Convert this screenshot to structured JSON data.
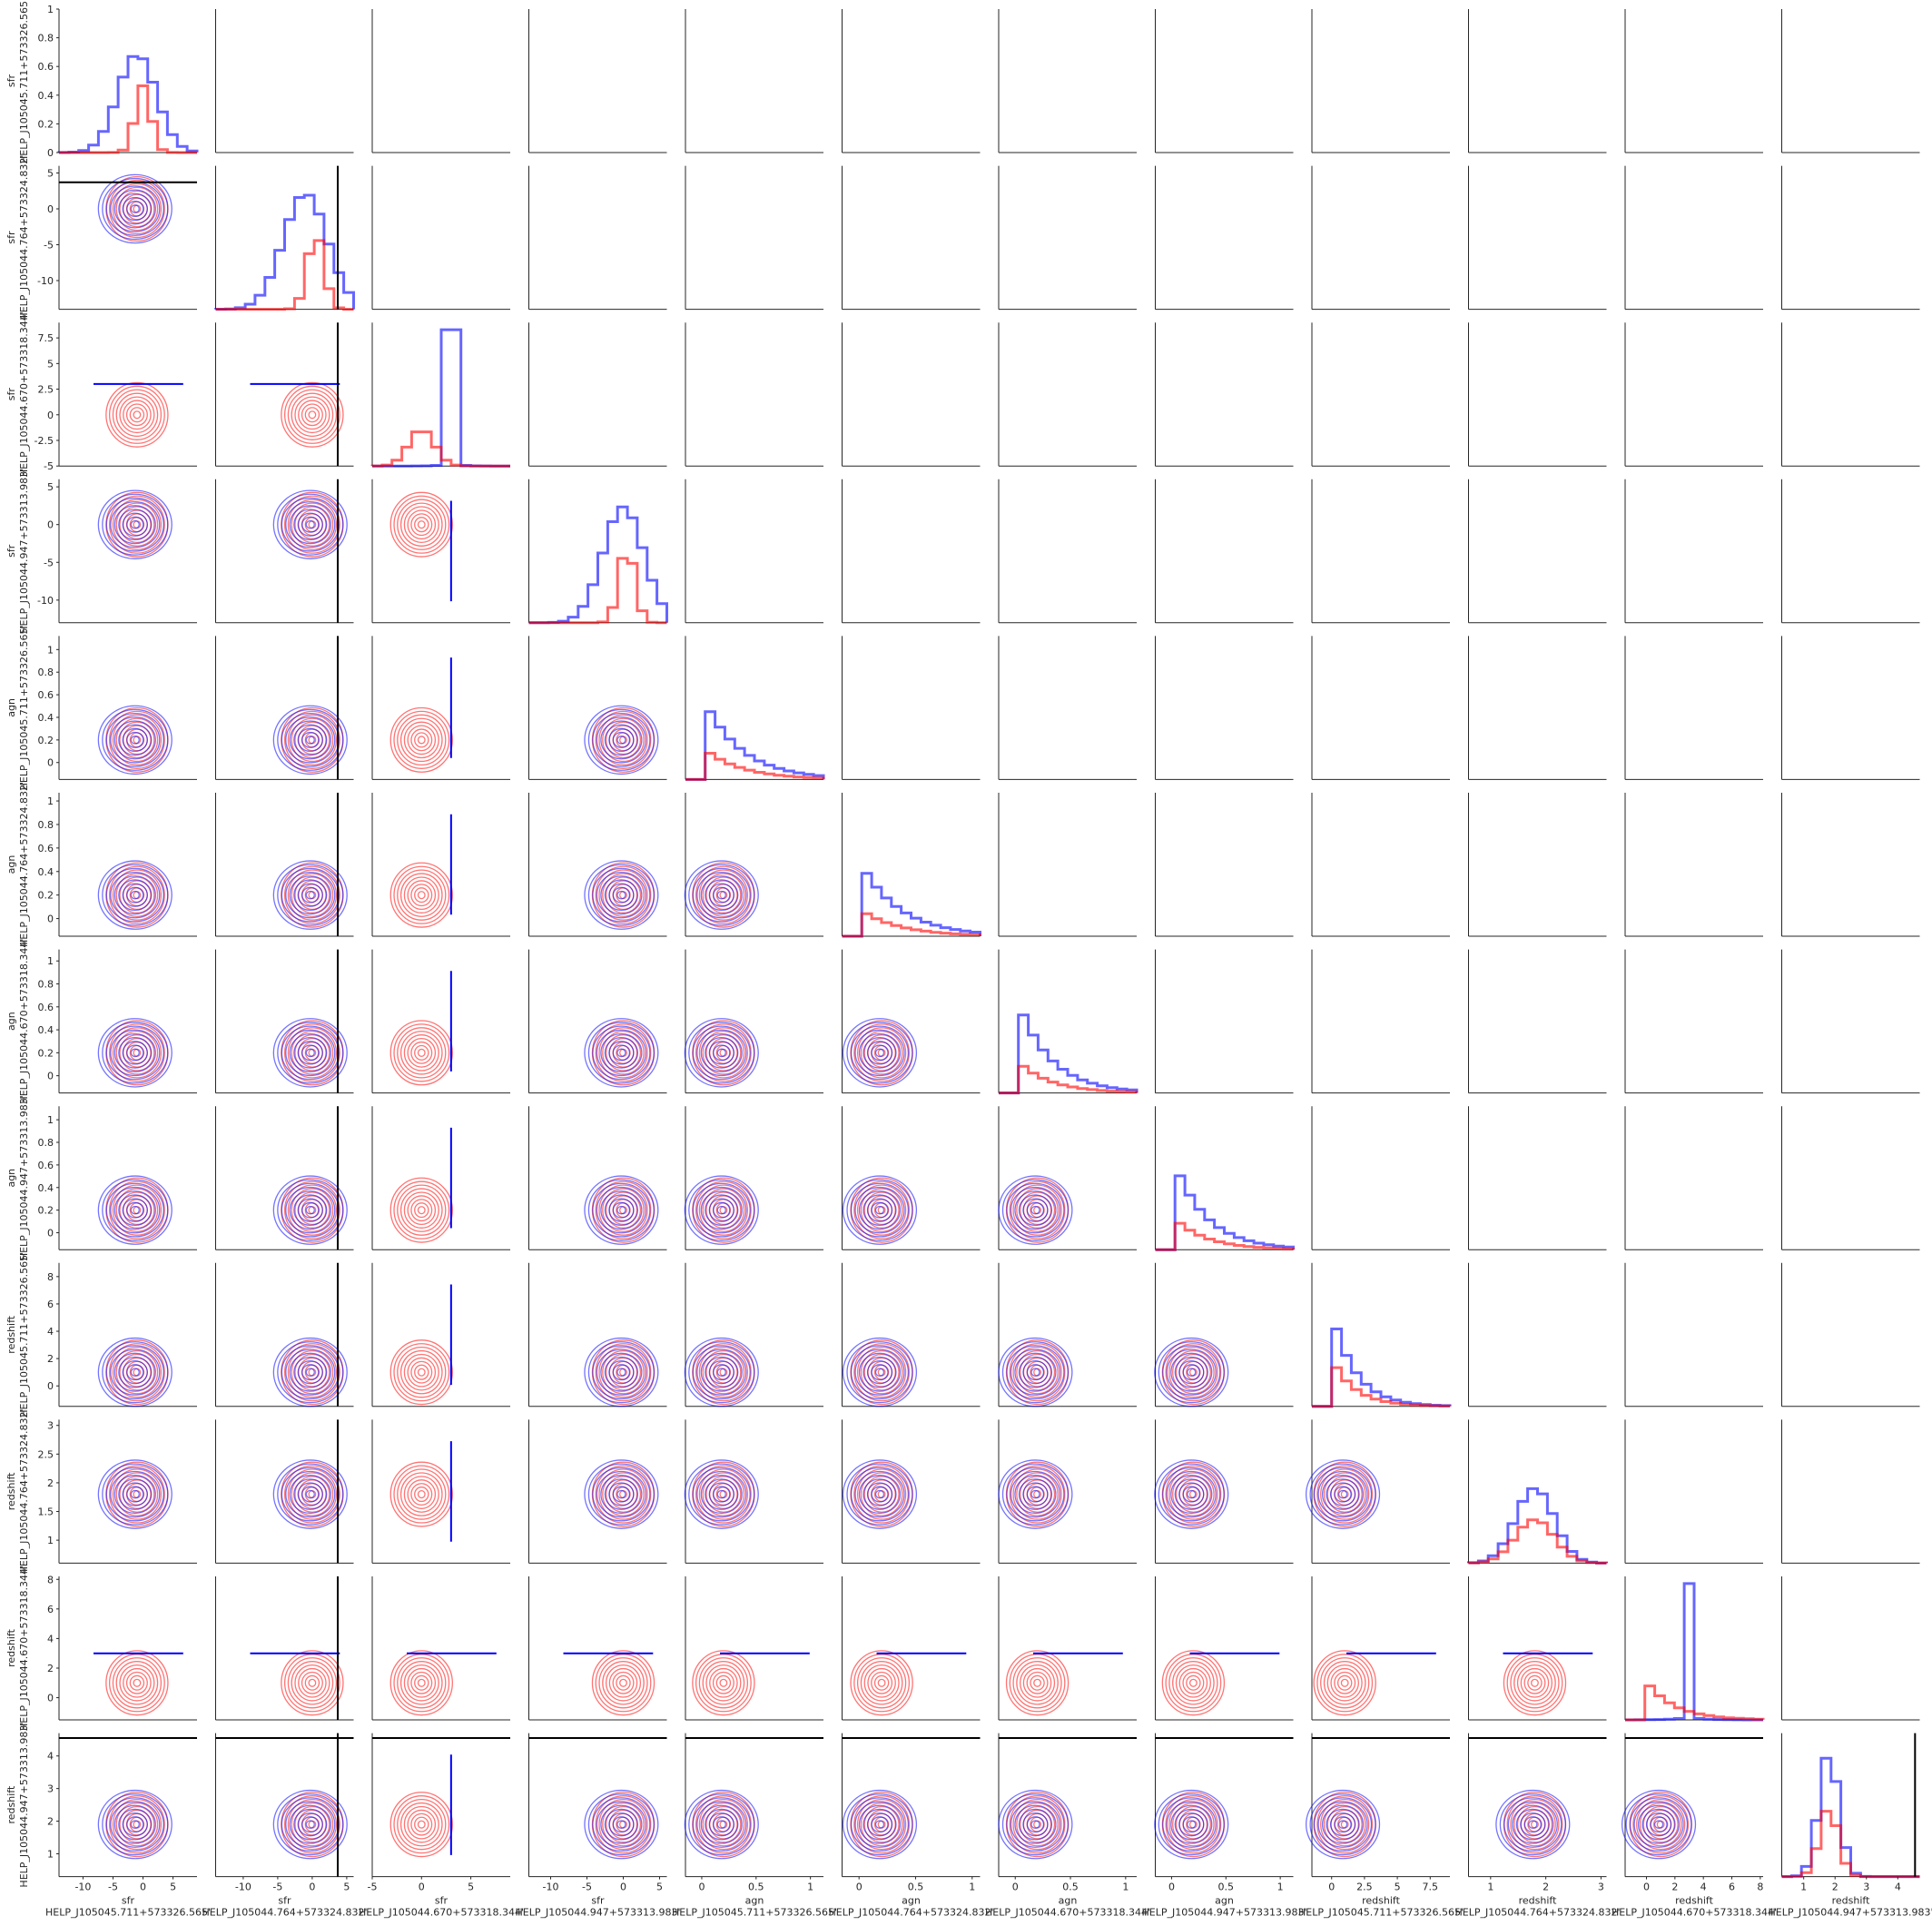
{
  "chart_data": {
    "type": "pairplot",
    "title": "",
    "grid": false,
    "corner": true,
    "objects": [
      "HELP_J105045.711+573326.565'",
      "HELP_J105044.764+573324.832'",
      "HELP_J105044.670+573318.344'",
      "HELP_J105044.947+573313.983'"
    ],
    "variables": [
      {
        "kind": "sfr",
        "object": "HELP_J105045.711+573326.565'",
        "lim": [
          -14,
          9
        ],
        "ticks": [
          -10,
          -5,
          0,
          5
        ],
        "yticks": [
          0,
          0.2,
          0.4,
          0.6,
          0.8,
          1.0
        ],
        "ylim": [
          0,
          1
        ]
      },
      {
        "kind": "sfr",
        "object": "HELP_J105044.764+573324.832'",
        "lim": [
          -14,
          6
        ],
        "ticks": [
          -10,
          -5,
          0,
          5
        ],
        "yticks": [
          -10,
          -5,
          0,
          5
        ]
      },
      {
        "kind": "sfr",
        "object": "HELP_J105044.670+573318.344'",
        "lim": [
          -5,
          9
        ],
        "ticks": [
          -5,
          0,
          5
        ],
        "yticks": [
          -5.0,
          -2.5,
          0.0,
          2.5,
          5.0,
          7.5
        ]
      },
      {
        "kind": "sfr",
        "object": "HELP_J105044.947+573313.983'",
        "lim": [
          -13,
          6
        ],
        "ticks": [
          -10,
          -5,
          0,
          5
        ],
        "yticks": [
          -10,
          -5,
          0,
          5
        ]
      },
      {
        "kind": "agn",
        "object": "HELP_J105045.711+573326.565'",
        "lim": [
          -0.15,
          1.12
        ],
        "ticks": [
          0.0,
          0.5,
          1.0
        ],
        "yticks": [
          0.0,
          0.2,
          0.4,
          0.6,
          0.8,
          1.0
        ]
      },
      {
        "kind": "agn",
        "object": "HELP_J105044.764+573324.832'",
        "lim": [
          -0.15,
          1.07
        ],
        "ticks": [
          0.0,
          0.5,
          1.0
        ],
        "yticks": [
          0.0,
          0.2,
          0.4,
          0.6,
          0.8,
          1.0
        ]
      },
      {
        "kind": "agn",
        "object": "HELP_J105044.670+573318.344'",
        "lim": [
          -0.15,
          1.1
        ],
        "ticks": [
          0.0,
          0.5,
          1.0
        ],
        "yticks": [
          0.0,
          0.2,
          0.4,
          0.6,
          0.8,
          1.0
        ]
      },
      {
        "kind": "agn",
        "object": "HELP_J105044.947+573313.983'",
        "lim": [
          -0.15,
          1.12
        ],
        "ticks": [
          0.0,
          0.5,
          1.0
        ],
        "yticks": [
          0.0,
          0.2,
          0.4,
          0.6,
          0.8,
          1.0
        ]
      },
      {
        "kind": "redshift",
        "object": "HELP_J105045.711+573326.565'",
        "lim": [
          -1.5,
          9
        ],
        "ticks": [
          0.0,
          2.5,
          5.0,
          7.5
        ],
        "yticks": [
          0,
          2,
          4,
          6,
          8
        ]
      },
      {
        "kind": "redshift",
        "object": "HELP_J105044.764+573324.832'",
        "lim": [
          0.6,
          3.1
        ],
        "ticks": [
          1,
          2,
          3
        ],
        "yticks": [
          1.0,
          1.5,
          2.0,
          2.5,
          3.0
        ]
      },
      {
        "kind": "redshift",
        "object": "HELP_J105044.670+573318.344'",
        "lim": [
          -1.5,
          8.2
        ],
        "ticks": [
          0,
          2,
          4,
          6,
          8
        ],
        "yticks": [
          0,
          2,
          4,
          6,
          8
        ]
      },
      {
        "kind": "redshift",
        "object": "HELP_J105044.947+573313.983'",
        "lim": [
          0.3,
          4.7
        ],
        "ticks": [
          1,
          2,
          3,
          4
        ],
        "yticks": [
          1,
          2,
          3,
          4
        ]
      }
    ],
    "series": [
      {
        "color": "#0000ff",
        "name": ""
      },
      {
        "color": "#ff0000",
        "name": ""
      }
    ],
    "marginals": [
      {
        "blue": {
          "center": -1,
          "spread": 3.2,
          "peak": 0.72
        },
        "red": {
          "center": 0,
          "spread": 1.3,
          "peak": 0.49
        }
      },
      {
        "blue": {
          "center": -1,
          "spread": 3.2,
          "peak": 0.85
        },
        "red": {
          "center": 0.5,
          "spread": 1.2,
          "peak": 0.55
        },
        "refline": 3.7
      },
      {
        "blue": {
          "spike": 3.0,
          "peak": 1.0
        },
        "red": {
          "center": 0,
          "spread": 1.3,
          "peak": 0.27
        }
      },
      {
        "blue": {
          "center": 0,
          "spread": 2.8,
          "peak": 0.85
        },
        "red": {
          "center": 0.5,
          "spread": 1.1,
          "peak": 0.55
        }
      },
      {
        "blue": {
          "start": 0.0,
          "decay": 0.35,
          "peak": 0.62
        },
        "red": {
          "start": 0.0,
          "decay": 0.35,
          "peak": 0.24
        }
      },
      {
        "blue": {
          "start": 0.0,
          "decay": 0.35,
          "peak": 0.56
        },
        "red": {
          "start": 0.0,
          "decay": 0.35,
          "peak": 0.2
        }
      },
      {
        "blue": {
          "start": 0.0,
          "decay": 0.3,
          "peak": 0.73
        },
        "red": {
          "start": 0.0,
          "decay": 0.3,
          "peak": 0.25
        }
      },
      {
        "blue": {
          "start": 0.0,
          "decay": 0.3,
          "peak": 0.7
        },
        "red": {
          "start": 0.0,
          "decay": 0.3,
          "peak": 0.25
        }
      },
      {
        "blue": {
          "start": 0.0,
          "decay": 1.8,
          "peak": 0.7
        },
        "red": {
          "start": 0.0,
          "decay": 1.8,
          "peak": 0.35
        }
      },
      {
        "blue": {
          "center": 1.8,
          "spread": 0.35,
          "peak": 0.55
        },
        "red": {
          "center": 1.8,
          "spread": 0.35,
          "peak": 0.32
        }
      },
      {
        "blue": {
          "spike": 3.0,
          "peak": 1.0
        },
        "red": {
          "start": 0.0,
          "decay": 2.0,
          "peak": 0.28
        }
      },
      {
        "blue": {
          "center": 1.8,
          "spread": 0.32,
          "peak": 0.9
        },
        "red": {
          "center": 1.8,
          "spread": 0.3,
          "peak": 0.5
        },
        "refline": 4.55
      }
    ],
    "reference_lines": {
      "horizontal_rows": {
        "1": 3.7,
        "11": 4.55
      },
      "vertical_cols": {
        "1": 3.7
      }
    }
  }
}
